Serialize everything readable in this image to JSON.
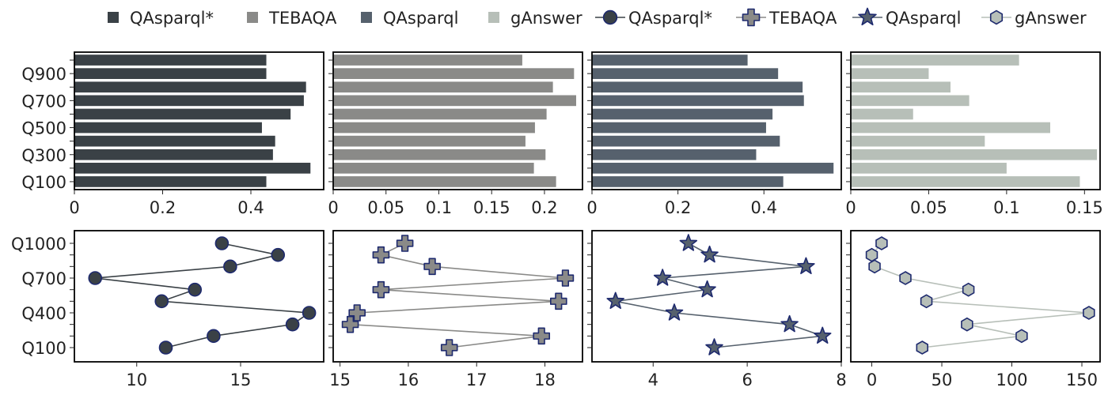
{
  "legend": [
    {
      "label": "QAsparql*",
      "kind": "bar",
      "color": "#3a4146"
    },
    {
      "label": "TEBAQA",
      "kind": "bar",
      "color": "#8a8a88"
    },
    {
      "label": "QAsparql",
      "kind": "bar",
      "color": "#56616d"
    },
    {
      "label": "gAnswer",
      "kind": "bar",
      "color": "#b7bfb8"
    },
    {
      "label": "QAsparql*",
      "kind": "marker",
      "marker": "circle",
      "color": "#3a4146"
    },
    {
      "label": "TEBAQA",
      "kind": "marker",
      "marker": "plus",
      "color": "#8a8a88"
    },
    {
      "label": "QAsparql",
      "kind": "marker",
      "marker": "star",
      "color": "#56616d"
    },
    {
      "label": "gAnswer",
      "kind": "marker",
      "marker": "hexagon",
      "color": "#b7bfb8"
    }
  ],
  "chart_data": [
    {
      "type": "bar",
      "orientation": "horizontal",
      "series_label": "QAsparql*",
      "color": "#3a4146",
      "categories": [
        "Q100",
        "Q200",
        "Q300",
        "Q400",
        "Q500",
        "Q600",
        "Q700",
        "Q800",
        "Q900",
        "Q1000"
      ],
      "values": [
        0.435,
        0.535,
        0.45,
        0.455,
        0.425,
        0.49,
        0.52,
        0.525,
        0.435,
        0.435
      ],
      "xlim": [
        0,
        0.565
      ],
      "xticks": [
        "0",
        "0.2",
        "0.4"
      ],
      "xtick_values": [
        0,
        0.2,
        0.4
      ],
      "yticks": [
        "Q100",
        "Q300",
        "Q500",
        "Q700",
        "Q900"
      ]
    },
    {
      "type": "bar",
      "orientation": "horizontal",
      "series_label": "TEBAQA",
      "color": "#8a8a88",
      "categories": [
        "Q100",
        "Q200",
        "Q300",
        "Q400",
        "Q500",
        "Q600",
        "Q700",
        "Q800",
        "Q900",
        "Q1000"
      ],
      "values": [
        0.211,
        0.19,
        0.201,
        0.182,
        0.191,
        0.202,
        0.23,
        0.208,
        0.228,
        0.179
      ],
      "xlim": [
        0,
        0.236
      ],
      "xticks": [
        "0",
        "0.05",
        "0.1",
        "0.15",
        "0.2"
      ],
      "xtick_values": [
        0,
        0.05,
        0.1,
        0.15,
        0.2
      ]
    },
    {
      "type": "bar",
      "orientation": "horizontal",
      "series_label": "QAsparql",
      "color": "#56616d",
      "categories": [
        "Q100",
        "Q200",
        "Q300",
        "Q400",
        "Q500",
        "Q600",
        "Q700",
        "Q800",
        "Q900",
        "Q1000"
      ],
      "values": [
        0.445,
        0.562,
        0.382,
        0.437,
        0.405,
        0.42,
        0.493,
        0.49,
        0.433,
        0.362
      ],
      "xlim": [
        0,
        0.58
      ],
      "xticks": [
        "0",
        "0.2",
        "0.4"
      ],
      "xtick_values": [
        0,
        0.2,
        0.4
      ]
    },
    {
      "type": "bar",
      "orientation": "horizontal",
      "series_label": "gAnswer",
      "color": "#b7bfb8",
      "categories": [
        "Q100",
        "Q200",
        "Q300",
        "Q400",
        "Q500",
        "Q600",
        "Q700",
        "Q800",
        "Q900",
        "Q1000"
      ],
      "values": [
        0.147,
        0.1,
        0.158,
        0.086,
        0.128,
        0.04,
        0.076,
        0.064,
        0.05,
        0.108
      ],
      "xlim": [
        0,
        0.16
      ],
      "xticks": [
        "0",
        "0.05",
        "0.1",
        "0.15"
      ],
      "xtick_values": [
        0,
        0.05,
        0.1,
        0.15
      ]
    },
    {
      "type": "line",
      "series_label": "QAsparql*",
      "marker": "circle",
      "color": "#3a4146",
      "categories": [
        "Q100",
        "Q200",
        "Q300",
        "Q400",
        "Q500",
        "Q600",
        "Q700",
        "Q800",
        "Q900",
        "Q1000"
      ],
      "values": [
        11.4,
        13.7,
        17.5,
        18.3,
        11.2,
        12.8,
        8.0,
        14.5,
        16.8,
        14.1
      ],
      "xlim": [
        7,
        19
      ],
      "xticks": [
        "10",
        "15"
      ],
      "xtick_values": [
        10,
        15
      ],
      "yticks": [
        "Q100",
        "Q400",
        "Q700",
        "Q1000"
      ]
    },
    {
      "type": "line",
      "series_label": "TEBAQA",
      "marker": "plus",
      "color": "#8a8a88",
      "categories": [
        "Q100",
        "Q200",
        "Q300",
        "Q400",
        "Q500",
        "Q600",
        "Q700",
        "Q800",
        "Q900",
        "Q1000"
      ],
      "values": [
        16.6,
        17.95,
        15.15,
        15.25,
        18.2,
        15.6,
        18.3,
        16.35,
        15.6,
        15.95
      ],
      "xlim": [
        14.9,
        18.55
      ],
      "xticks": [
        "15",
        "16",
        "17",
        "18"
      ],
      "xtick_values": [
        15,
        16,
        17,
        18
      ]
    },
    {
      "type": "line",
      "series_label": "QAsparql",
      "marker": "star",
      "color": "#56616d",
      "categories": [
        "Q100",
        "Q200",
        "Q300",
        "Q400",
        "Q500",
        "Q600",
        "Q700",
        "Q800",
        "Q900",
        "Q1000"
      ],
      "values": [
        5.3,
        7.6,
        6.9,
        4.45,
        3.2,
        5.15,
        4.2,
        7.25,
        5.2,
        4.75
      ],
      "xlim": [
        2.7,
        8.0
      ],
      "xticks": [
        "4",
        "6",
        "8"
      ],
      "xtick_values": [
        4,
        6,
        8
      ]
    },
    {
      "type": "line",
      "series_label": "gAnswer",
      "marker": "hexagon",
      "color": "#b7bfb8",
      "categories": [
        "Q100",
        "Q200",
        "Q300",
        "Q400",
        "Q500",
        "Q600",
        "Q700",
        "Q800",
        "Q900",
        "Q1000"
      ],
      "values": [
        36,
        107,
        68,
        155,
        39,
        69,
        24,
        2,
        0,
        7
      ],
      "xlim": [
        -15,
        163
      ],
      "xticks": [
        "0",
        "50",
        "100",
        "150"
      ],
      "xtick_values": [
        0,
        50,
        100,
        150
      ]
    }
  ]
}
